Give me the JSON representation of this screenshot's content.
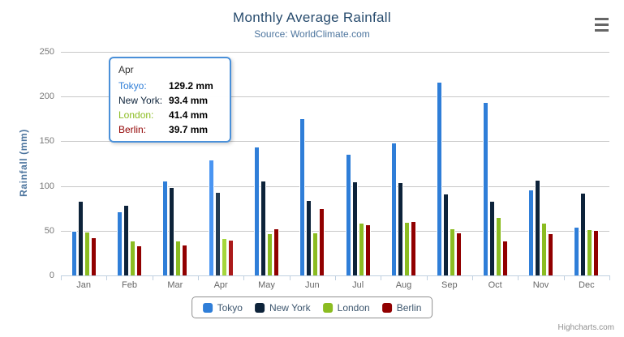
{
  "chart_data": {
    "type": "bar",
    "title": "Monthly Average Rainfall",
    "subtitle": "Source: WorldClimate.com",
    "xlabel": "",
    "ylabel": "Rainfall (mm)",
    "ylim": [
      0,
      250
    ],
    "y_ticks": [
      0,
      50,
      100,
      150,
      200,
      250
    ],
    "grid": true,
    "legend_position": "bottom",
    "hovered_category": "Apr",
    "categories": [
      "Jan",
      "Feb",
      "Mar",
      "Apr",
      "May",
      "Jun",
      "Jul",
      "Aug",
      "Sep",
      "Oct",
      "Nov",
      "Dec"
    ],
    "series": [
      {
        "name": "Tokyo",
        "color": "#2f7ed8",
        "hover_color": "#4a95f2",
        "values": [
          49.9,
          71.5,
          106.4,
          129.2,
          144.0,
          176.0,
          135.6,
          148.5,
          216.4,
          194.1,
          95.6,
          54.4
        ]
      },
      {
        "name": "New York",
        "color": "#0d233a",
        "hover_color": "#253c53",
        "values": [
          83.6,
          78.8,
          98.5,
          93.4,
          106.0,
          84.5,
          105.0,
          104.3,
          91.2,
          83.5,
          106.6,
          92.3
        ]
      },
      {
        "name": "London",
        "color": "#8bbc21",
        "hover_color": "#a5d63b",
        "values": [
          48.9,
          38.8,
          39.3,
          41.4,
          47.0,
          48.3,
          59.0,
          59.6,
          52.4,
          65.2,
          59.3,
          51.2
        ]
      },
      {
        "name": "Berlin",
        "color": "#910000",
        "hover_color": "#ab1a1a",
        "values": [
          42.4,
          33.2,
          34.5,
          39.7,
          52.6,
          75.5,
          57.4,
          60.4,
          47.6,
          39.1,
          46.8,
          51.1
        ]
      }
    ]
  },
  "tooltip": {
    "header": "Apr",
    "border_color": "#4a90d9",
    "rows": [
      {
        "label": "Tokyo:",
        "value": "129.2 mm",
        "color": "#2f7ed8"
      },
      {
        "label": "New York:",
        "value": "93.4 mm",
        "color": "#0d233a"
      },
      {
        "label": "London:",
        "value": "41.4 mm",
        "color": "#8bbc21"
      },
      {
        "label": "Berlin:",
        "value": "39.7 mm",
        "color": "#910000"
      }
    ]
  },
  "credits": {
    "text": "Highcharts.com"
  },
  "menu": {
    "icon": "hamburger-icon"
  }
}
